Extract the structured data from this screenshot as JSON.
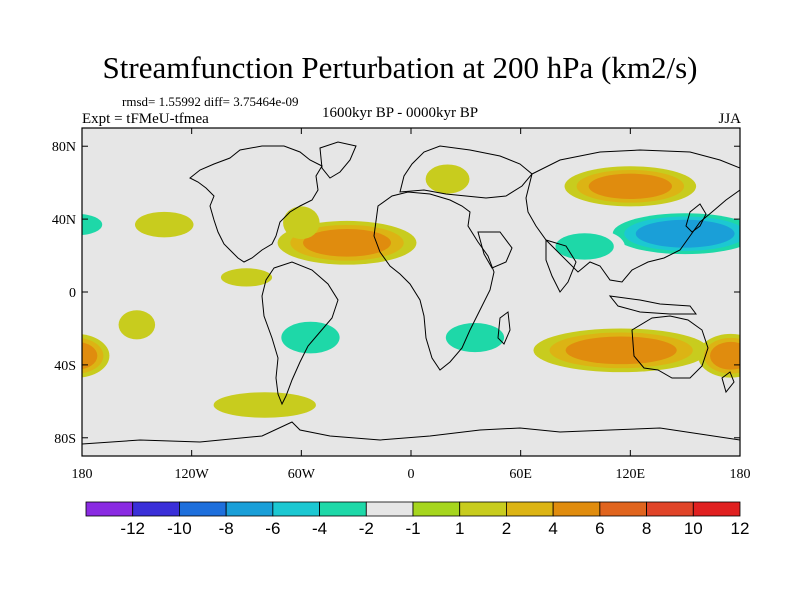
{
  "header": {
    "title": "Streamfunction Perturbation at 200 hPa (km2/s)",
    "stats": "rmsd= 1.55992 diff= 3.75464e-09",
    "experiment": "Expt = tFMeU-tfmea",
    "period": "1600kyr BP - 0000kyr BP",
    "season": "JJA"
  },
  "colors": {
    "background": "#e6e6e6",
    "coast": "#000000"
  },
  "chart_data": {
    "type": "heatmap",
    "title": "Streamfunction Perturbation at 200 hPa (km2/s)",
    "projection": "cylindrical-equidistant",
    "x_range": [
      -180,
      180
    ],
    "y_range": [
      -90,
      90
    ],
    "x_ticks": [
      {
        "value": -180,
        "label": "180"
      },
      {
        "value": -120,
        "label": "120W"
      },
      {
        "value": -60,
        "label": "60W"
      },
      {
        "value": 0,
        "label": "0"
      },
      {
        "value": 60,
        "label": "60E"
      },
      {
        "value": 120,
        "label": "120E"
      },
      {
        "value": 180,
        "label": "180"
      }
    ],
    "y_ticks": [
      {
        "value": 80,
        "label": "80N"
      },
      {
        "value": 40,
        "label": "40N"
      },
      {
        "value": 0,
        "label": "0"
      },
      {
        "value": -40,
        "label": "40S"
      },
      {
        "value": -80,
        "label": "80S"
      }
    ],
    "colorbar": {
      "levels": [
        -14,
        -12,
        -10,
        -8,
        -6,
        -4,
        -2,
        -1,
        1,
        2,
        4,
        6,
        8,
        10,
        12,
        14
      ],
      "labels": [
        "-12",
        "-10",
        "-8",
        "-6",
        "-4",
        "-2",
        "-1",
        "1",
        "2",
        "4",
        "6",
        "8",
        "10",
        "12"
      ],
      "colors": [
        "#8a2be2",
        "#3a2fd8",
        "#1e6fdc",
        "#1a9fd8",
        "#1cc8d2",
        "#1ed8a8",
        "#e6e6e6",
        "#a6d61e",
        "#c8cc1e",
        "#dcb414",
        "#e08c0e",
        "#e0641e",
        "#e04428",
        "#e02020"
      ]
    },
    "blobs": [
      {
        "lon": -78,
        "lat": 50,
        "rlon": 12,
        "rlat": 6,
        "value": -1.5
      },
      {
        "lon": -35,
        "lat": 27,
        "rlon": 38,
        "rlat": 12,
        "value": 4.5
      },
      {
        "lon": -90,
        "lat": 8,
        "rlon": 14,
        "rlat": 5,
        "value": 1.6
      },
      {
        "lon": -60,
        "lat": 38,
        "rlon": 10,
        "rlat": 9,
        "value": 1.8
      },
      {
        "lon": -135,
        "lat": 37,
        "rlon": 16,
        "rlat": 7,
        "value": 1.8
      },
      {
        "lon": -182,
        "lat": 37,
        "rlon": 18,
        "rlat": 8,
        "value": -3.5
      },
      {
        "lon": -18,
        "lat": 62,
        "rlon": 10,
        "rlat": 5,
        "value": -1.5
      },
      {
        "lon": 20,
        "lat": 62,
        "rlon": 12,
        "rlat": 8,
        "value": 1.6
      },
      {
        "lon": 28,
        "lat": 44,
        "rlon": 9,
        "rlat": 6,
        "value": -1.5
      },
      {
        "lon": 120,
        "lat": 58,
        "rlon": 36,
        "rlat": 11,
        "value": 5.2
      },
      {
        "lon": 150,
        "lat": 32,
        "rlon": 46,
        "rlat": 13,
        "value": -6.5
      },
      {
        "lon": 95,
        "lat": 25,
        "rlon": 22,
        "rlat": 10,
        "value": -2.5
      },
      {
        "lon": 170,
        "lat": 63,
        "rlon": 14,
        "rlat": 6,
        "value": -1.5
      },
      {
        "lon": -55,
        "lat": -25,
        "rlon": 22,
        "rlat": 12,
        "value": -3.5
      },
      {
        "lon": -150,
        "lat": -18,
        "rlon": 10,
        "rlat": 8,
        "value": 1.5
      },
      {
        "lon": 35,
        "lat": -25,
        "rlon": 22,
        "rlat": 11,
        "value": -3.5
      },
      {
        "lon": 5,
        "lat": -35,
        "rlon": 15,
        "rlat": 10,
        "value": -1.5
      },
      {
        "lon": 115,
        "lat": -32,
        "rlon": 48,
        "rlat": 12,
        "value": 4.0
      },
      {
        "lon": -183,
        "lat": -35,
        "rlon": 18,
        "rlat": 12,
        "value": 4.0
      },
      {
        "lon": 175,
        "lat": -35,
        "rlon": 18,
        "rlat": 12,
        "value": 4.0
      },
      {
        "lon": -80,
        "lat": -62,
        "rlon": 28,
        "rlat": 7,
        "value": 1.6
      },
      {
        "lon": 100,
        "lat": -70,
        "rlon": 42,
        "rlat": 5,
        "value": -1.5
      },
      {
        "lon": 10,
        "lat": -10,
        "rlon": 20,
        "rlat": 6,
        "value": -1.5
      }
    ]
  }
}
